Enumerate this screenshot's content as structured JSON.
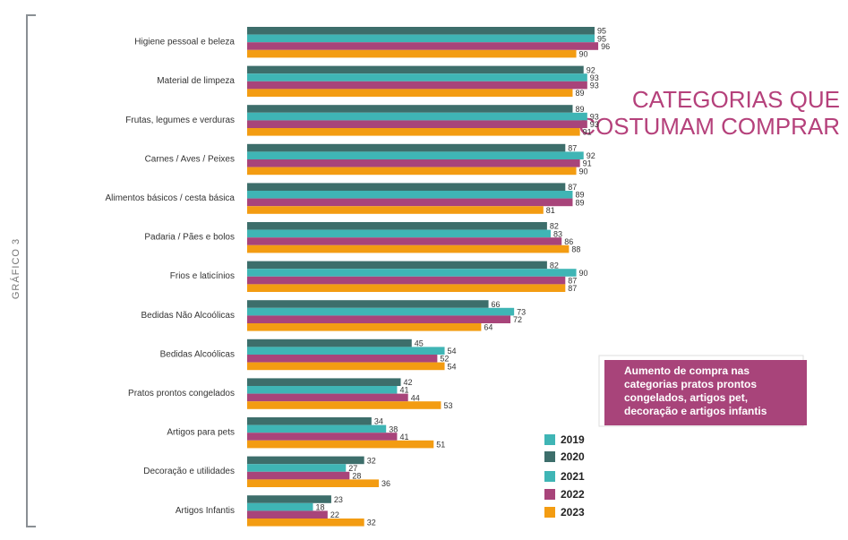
{
  "chart_data": {
    "type": "hbar",
    "title": [
      "CATEGORIAS QUE",
      "COSTUMAM COMPRAR"
    ],
    "figure_label": "GRÁFICO 3",
    "annotation": [
      "Aumento de compra nas",
      "categorias pratos prontos",
      "congelados, artigos pet,",
      "decoração e artigos infantis"
    ],
    "categories": [
      "Higiene pessoal e beleza",
      "Material de limpeza",
      "Frutas, legumes e verduras",
      "Carnes / Aves / Peixes",
      "Alimentos básicos / cesta básica",
      "Padaria / Pães e bolos",
      "Frios e laticínios",
      "Bedidas Não Alcoólicas",
      "Bedidas Alcoólicas",
      "Pratos prontos congelados",
      "Artigos para pets",
      "Decoração e utilidades",
      "Artigos Infantis"
    ],
    "series": [
      {
        "name": "2019",
        "color": "#3fb5b5",
        "values": [
          null,
          null,
          null,
          null,
          null,
          null,
          null,
          null,
          null,
          null,
          null,
          null,
          null
        ]
      },
      {
        "name": "2020",
        "color": "#3d6e6b",
        "values": [
          95,
          92,
          89,
          87,
          87,
          82,
          82,
          66,
          45,
          42,
          34,
          32,
          23
        ]
      },
      {
        "name": "2021",
        "color": "#3fb5b5",
        "values": [
          95,
          93,
          93,
          92,
          89,
          83,
          90,
          73,
          54,
          41,
          38,
          27,
          18
        ]
      },
      {
        "name": "2022",
        "color": "#a8447a",
        "values": [
          96,
          93,
          93,
          91,
          89,
          86,
          87,
          72,
          52,
          44,
          41,
          28,
          22
        ]
      },
      {
        "name": "2023",
        "color": "#f39c12",
        "values": [
          90,
          89,
          91,
          90,
          81,
          88,
          87,
          64,
          54,
          53,
          51,
          36,
          32
        ]
      }
    ],
    "xlim": [
      0,
      100
    ]
  }
}
